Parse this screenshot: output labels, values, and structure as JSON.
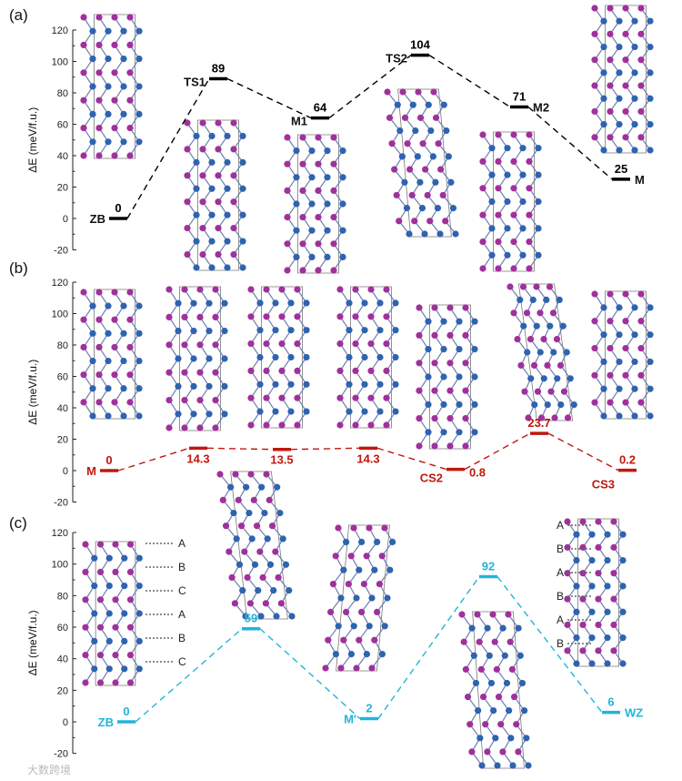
{
  "watermark": "大数跨境",
  "colors": {
    "a": "#000000",
    "b": "#c0180e",
    "c": "#22b4d8",
    "atom_a": "#a0309c",
    "atom_b": "#2e63b0"
  },
  "chart_data": [
    {
      "panel": "(a)",
      "type": "line",
      "ylabel": "ΔE (meV/f.u.)",
      "ylim": [
        -20,
        120
      ],
      "yticks": [
        -20,
        0,
        20,
        40,
        60,
        80,
        100,
        120
      ],
      "states": [
        {
          "label": "ZB",
          "value": 0,
          "value_text": "0",
          "ls": "left"
        },
        {
          "label": "TS1",
          "value": 89,
          "value_text": "89",
          "ls": "left"
        },
        {
          "label": "M1",
          "value": 64,
          "value_text": "64",
          "ls": "left"
        },
        {
          "label": "TS2",
          "value": 104,
          "value_text": "104",
          "ls": "left"
        },
        {
          "label": "M2",
          "value": 71,
          "value_text": "71",
          "ls": "right"
        },
        {
          "label": "M",
          "value": 25,
          "value_text": "25",
          "ls": "right"
        }
      ]
    },
    {
      "panel": "(b)",
      "type": "line",
      "ylabel": "ΔE (meV/f.u.)",
      "ylim": [
        -20,
        120
      ],
      "yticks": [
        -20,
        0,
        20,
        40,
        60,
        80,
        100,
        120
      ],
      "states": [
        {
          "label": "M",
          "value": 0,
          "value_text": "0",
          "ls": "left"
        },
        {
          "label": "",
          "value": 14.3,
          "value_text": "14.3",
          "ls": ""
        },
        {
          "label": "",
          "value": 13.5,
          "value_text": "13.5",
          "ls": ""
        },
        {
          "label": "",
          "value": 14.3,
          "value_text": "14.3",
          "ls": ""
        },
        {
          "label": "CS2",
          "value": 0.8,
          "value_text": "0.8",
          "ls": "left"
        },
        {
          "label": "",
          "value": 23.7,
          "value_text": "23.7",
          "ls": ""
        },
        {
          "label": "CS3",
          "value": 0.2,
          "value_text": "0.2",
          "ls": "left"
        }
      ]
    },
    {
      "panel": "(c)",
      "type": "line",
      "ylabel": "ΔE (meV/f.u.)",
      "ylim": [
        -20,
        120
      ],
      "yticks": [
        -20,
        0,
        20,
        40,
        60,
        80,
        100,
        120
      ],
      "states": [
        {
          "label": "ZB",
          "value": 0,
          "value_text": "0",
          "ls": "left"
        },
        {
          "label": "",
          "value": 59,
          "value_text": "59",
          "ls": ""
        },
        {
          "label": "M'",
          "value": 2,
          "value_text": "2",
          "ls": "left"
        },
        {
          "label": "",
          "value": 92,
          "value_text": "92",
          "ls": ""
        },
        {
          "label": "WZ",
          "value": 6,
          "value_text": "6",
          "ls": "right"
        }
      ],
      "stacking_zb": [
        "A",
        "B",
        "C",
        "A",
        "B",
        "C"
      ],
      "stacking_wz": [
        "A",
        "B",
        "A",
        "B",
        "A",
        "B"
      ]
    }
  ]
}
